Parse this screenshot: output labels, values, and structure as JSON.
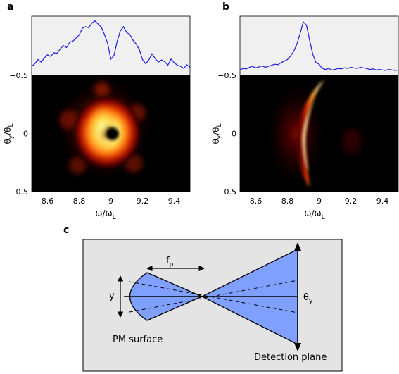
{
  "panels": {
    "a": {
      "letter": "a"
    },
    "b": {
      "letter": "b"
    },
    "c": {
      "letter": "c"
    }
  },
  "chart_data": [
    {
      "type": "heatmap",
      "panel": "a",
      "xlabel": {
        "main": "ω/ω",
        "sub": "L"
      },
      "ylabel": {
        "main": "θ",
        "sub1": "y",
        "mid": "/θ",
        "sub2": "L"
      },
      "xlim": [
        8.5,
        9.5
      ],
      "ylim": [
        -0.5,
        0.5
      ],
      "x_ticks": [
        "8.6",
        "8.8",
        "9",
        "9.2",
        "9.4"
      ],
      "y_ticks": [
        "−0.5",
        "0",
        "0.5"
      ],
      "colormap": "afmhot",
      "profile_color": "#1a1adc",
      "profile": {
        "x": [
          8.5,
          8.52,
          8.54,
          8.56,
          8.58,
          8.6,
          8.62,
          8.64,
          8.66,
          8.68,
          8.7,
          8.72,
          8.74,
          8.76,
          8.78,
          8.8,
          8.82,
          8.84,
          8.86,
          8.88,
          8.9,
          8.92,
          8.94,
          8.96,
          8.98,
          9.0,
          9.02,
          9.04,
          9.06,
          9.08,
          9.1,
          9.12,
          9.14,
          9.16,
          9.18,
          9.2,
          9.22,
          9.24,
          9.26,
          9.28,
          9.3,
          9.32,
          9.34,
          9.36,
          9.38,
          9.4,
          9.42,
          9.44,
          9.46,
          9.48,
          9.5
        ],
        "y": [
          0.12,
          0.17,
          0.25,
          0.2,
          0.28,
          0.34,
          0.31,
          0.38,
          0.37,
          0.45,
          0.52,
          0.48,
          0.58,
          0.6,
          0.66,
          0.72,
          0.85,
          0.88,
          0.86,
          0.95,
          0.99,
          0.93,
          0.87,
          0.73,
          0.56,
          0.26,
          0.33,
          0.6,
          0.8,
          0.88,
          0.77,
          0.73,
          0.62,
          0.55,
          0.44,
          0.25,
          0.17,
          0.24,
          0.36,
          0.27,
          0.2,
          0.24,
          0.21,
          0.14,
          0.26,
          0.19,
          0.14,
          0.12,
          0.08,
          0.15,
          0.1
        ]
      },
      "features": "bright ring (doughnut) with dark central hole near ω/ω_L ≈ 9.0, θy ≈ 0"
    },
    {
      "type": "heatmap",
      "panel": "b",
      "xlabel": {
        "main": "ω/ω",
        "sub": "L"
      },
      "ylabel": {
        "main": "θ",
        "sub1": "y",
        "mid": "/θ",
        "sub2": "L"
      },
      "xlim": [
        8.5,
        9.5
      ],
      "ylim": [
        -0.5,
        0.5
      ],
      "x_ticks": [
        "8.6",
        "8.8",
        "9",
        "9.2",
        "9.4"
      ],
      "y_ticks": [
        "−0.5",
        "0",
        "0.5"
      ],
      "colormap": "afmhot",
      "profile_color": "#1a1adc",
      "profile": {
        "x": [
          8.5,
          8.52,
          8.54,
          8.56,
          8.58,
          8.6,
          8.62,
          8.64,
          8.66,
          8.68,
          8.7,
          8.72,
          8.74,
          8.76,
          8.78,
          8.8,
          8.82,
          8.84,
          8.86,
          8.88,
          8.9,
          8.92,
          8.94,
          8.96,
          8.98,
          9.0,
          9.02,
          9.04,
          9.06,
          9.08,
          9.1,
          9.12,
          9.14,
          9.16,
          9.18,
          9.2,
          9.22,
          9.24,
          9.26,
          9.28,
          9.3,
          9.32,
          9.34,
          9.36,
          9.38,
          9.4,
          9.42,
          9.44,
          9.46,
          9.48,
          9.5
        ],
        "y": [
          0.05,
          0.08,
          0.07,
          0.1,
          0.12,
          0.09,
          0.11,
          0.13,
          0.1,
          0.12,
          0.14,
          0.16,
          0.15,
          0.19,
          0.22,
          0.25,
          0.32,
          0.41,
          0.55,
          0.75,
          0.97,
          0.91,
          0.62,
          0.35,
          0.19,
          0.16,
          0.08,
          0.06,
          0.08,
          0.05,
          0.06,
          0.08,
          0.07,
          0.09,
          0.08,
          0.1,
          0.09,
          0.08,
          0.1,
          0.09,
          0.08,
          0.06,
          0.07,
          0.05,
          0.06,
          0.05,
          0.04,
          0.06,
          0.05,
          0.04,
          0.05
        ]
      },
      "features": "bright crescent arc centered near ω/ω_L ≈ 8.92, spanning θy ≈ −0.45 to 0.45"
    }
  ],
  "diagram": {
    "labels": {
      "fp": {
        "main": "f",
        "sub": "p"
      },
      "y": "y",
      "theta": {
        "main": "θ",
        "sub": "y"
      },
      "pm_surface": "PM surface",
      "detection_plane": "Detection plane"
    },
    "colors": {
      "background": "#e4e4e4",
      "cone_fill": "#7fa0ff",
      "line": "#000000"
    }
  }
}
